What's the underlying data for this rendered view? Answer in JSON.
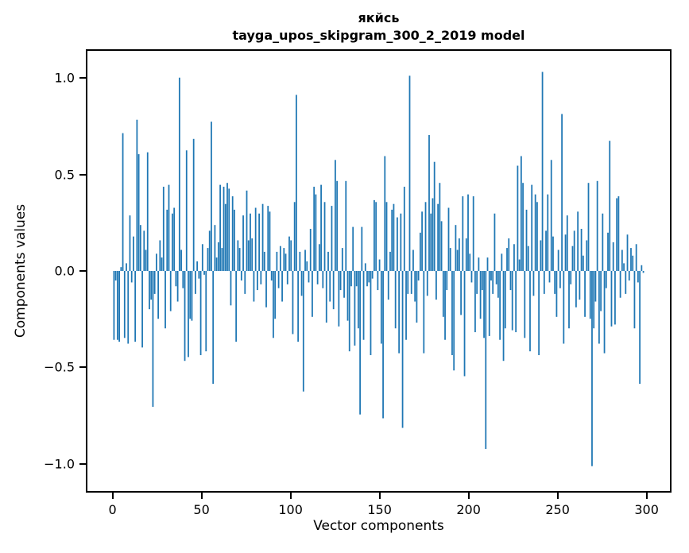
{
  "figure": {
    "title_line1": "якйсь",
    "title_line2": "tayga_upos_skipgram_300_2_2019 model"
  },
  "chart_data": {
    "type": "bar",
    "title": "якйсь\ntayga_upos_skipgram_300_2_2019 model",
    "xlabel": "Vector components",
    "ylabel": "Components values",
    "xlim": [
      -15,
      314
    ],
    "ylim": [
      -1.15,
      1.15
    ],
    "xticks": [
      0,
      50,
      100,
      150,
      200,
      250,
      300
    ],
    "xtick_labels": [
      "0",
      "50",
      "100",
      "150",
      "200",
      "250",
      "300"
    ],
    "yticks": [
      -1.0,
      -0.5,
      0.0,
      0.5,
      1.0
    ],
    "ytick_labels": [
      "−1.0",
      "−0.5",
      "0.0",
      "0.5",
      "1.0"
    ],
    "bar_color": "#1f77b4",
    "bar_width": 0.8,
    "grid": false,
    "legend": null,
    "x_is_index": true,
    "values": [
      -0.36,
      -0.05,
      -0.36,
      -0.37,
      0.02,
      0.72,
      -0.35,
      0.04,
      -0.38,
      0.29,
      -0.06,
      0.18,
      -0.37,
      0.79,
      0.61,
      0.24,
      -0.4,
      0.21,
      0.11,
      0.62,
      -0.2,
      -0.15,
      -0.71,
      -0.12,
      0.09,
      -0.25,
      0.16,
      0.07,
      0.44,
      -0.3,
      0.32,
      0.45,
      -0.21,
      0.3,
      0.33,
      -0.08,
      -0.16,
      1.01,
      0.11,
      -0.09,
      -0.47,
      0.63,
      -0.45,
      -0.25,
      -0.26,
      0.69,
      -0.12,
      0.05,
      -0.04,
      -0.44,
      0.14,
      -0.02,
      -0.42,
      0.12,
      0.21,
      0.78,
      -0.59,
      0.24,
      0.07,
      0.15,
      0.45,
      0.12,
      0.44,
      0.35,
      0.46,
      0.43,
      -0.18,
      0.39,
      0.32,
      -0.37,
      0.16,
      0.12,
      -0.05,
      0.29,
      -0.12,
      0.42,
      0.16,
      0.3,
      0.17,
      -0.16,
      0.33,
      -0.1,
      0.3,
      -0.07,
      0.35,
      0.1,
      -0.19,
      0.34,
      0.31,
      -0.05,
      -0.35,
      -0.25,
      0.1,
      -0.09,
      0.13,
      -0.16,
      0.12,
      0.09,
      -0.07,
      0.18,
      0.16,
      -0.33,
      0.36,
      0.92,
      -0.37,
      0.1,
      -0.13,
      -0.63,
      0.11,
      0.05,
      -0.06,
      0.22,
      -0.24,
      0.44,
      0.4,
      -0.07,
      0.14,
      0.45,
      -0.09,
      0.36,
      -0.27,
      0.1,
      -0.16,
      0.34,
      -0.2,
      0.58,
      0.47,
      -0.29,
      -0.1,
      0.12,
      -0.14,
      0.47,
      -0.26,
      -0.42,
      -0.08,
      0.23,
      -0.39,
      -0.08,
      -0.3,
      -0.75,
      0.23,
      -0.36,
      0.04,
      -0.08,
      -0.06,
      -0.44,
      -0.04,
      0.37,
      0.36,
      -0.1,
      0.06,
      -0.38,
      -0.77,
      0.6,
      0.36,
      -0.15,
      0.1,
      0.32,
      0.35,
      -0.3,
      0.28,
      -0.43,
      0.3,
      -0.82,
      0.44,
      -0.36,
      -0.12,
      1.02,
      -0.12,
      0.11,
      -0.16,
      -0.27,
      -0.05,
      0.2,
      0.31,
      -0.43,
      0.36,
      -0.13,
      0.71,
      0.3,
      0.38,
      0.57,
      -0.15,
      0.35,
      0.46,
      0.26,
      -0.24,
      -0.36,
      -0.1,
      0.33,
      0.12,
      -0.44,
      -0.52,
      0.24,
      0.11,
      0.17,
      -0.23,
      0.39,
      -0.55,
      0.17,
      0.4,
      0.09,
      -0.06,
      0.39,
      -0.32,
      -0.12,
      0.07,
      -0.25,
      -0.1,
      -0.35,
      -0.93,
      0.07,
      -0.34,
      -0.05,
      -0.12,
      0.3,
      -0.07,
      -0.14,
      -0.36,
      0.09,
      -0.47,
      -0.3,
      0.12,
      0.17,
      -0.1,
      -0.31,
      0.14,
      -0.32,
      0.55,
      0.06,
      0.6,
      0.46,
      -0.35,
      0.32,
      0.13,
      -0.42,
      0.45,
      -0.13,
      0.4,
      0.36,
      -0.44,
      0.16,
      1.04,
      -0.12,
      0.21,
      0.4,
      -0.06,
      0.58,
      0.18,
      -0.12,
      -0.24,
      0.11,
      -0.09,
      0.82,
      -0.38,
      0.19,
      0.29,
      -0.3,
      -0.07,
      0.13,
      0.21,
      -0.19,
      0.31,
      -0.15,
      0.22,
      0.08,
      -0.24,
      0.16,
      0.46,
      -0.25,
      -1.02,
      -0.3,
      -0.16,
      0.47,
      -0.38,
      -0.21,
      0.3,
      -0.43,
      -0.09,
      0.2,
      0.68,
      -0.29,
      0.15,
      -0.28,
      0.38,
      0.39,
      -0.14,
      0.11,
      0.04,
      -0.12,
      0.19,
      -0.05,
      0.12,
      0.08,
      -0.3,
      0.14,
      -0.06,
      -0.59,
      0.03,
      -0.01
    ]
  }
}
